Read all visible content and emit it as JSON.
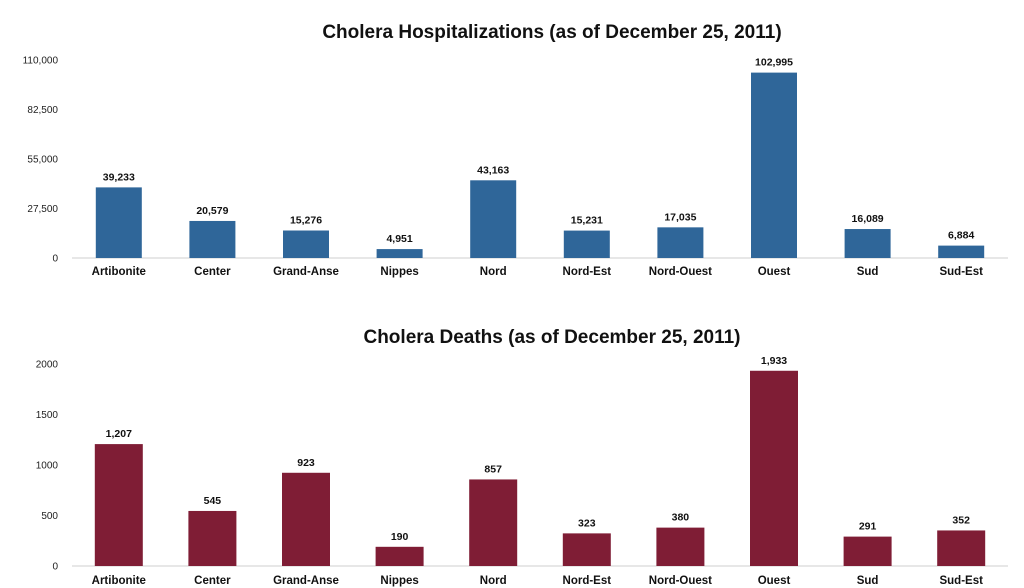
{
  "chart_data": [
    {
      "type": "bar",
      "title": "Cholera Hospitalizations (as of December 25, 2011)",
      "xlabel": "",
      "ylabel": "",
      "categories": [
        "Artibonite",
        "Center",
        "Grand-Anse",
        "Nippes",
        "Nord",
        "Nord-Est",
        "Nord-Ouest",
        "Ouest",
        "Sud",
        "Sud-Est"
      ],
      "values": [
        39233,
        20579,
        15276,
        4951,
        43163,
        15231,
        17035,
        102995,
        16089,
        6884
      ],
      "value_labels": [
        "39,233",
        "20,579",
        "15,276",
        "4,951",
        "43,163",
        "15,231",
        "17,035",
        "102,995",
        "16,089",
        "6,884"
      ],
      "yticks": [
        "0",
        "27,500",
        "55,000",
        "82,500",
        "110,000"
      ],
      "ylim": [
        0,
        110000
      ],
      "grid": false,
      "legend": "none",
      "color": "#2f6699"
    },
    {
      "type": "bar",
      "title": "Cholera Deaths (as of December 25, 2011)",
      "xlabel": "",
      "ylabel": "",
      "categories": [
        "Artibonite",
        "Center",
        "Grand-Anse",
        "Nippes",
        "Nord",
        "Nord-Est",
        "Nord-Ouest",
        "Ouest",
        "Sud",
        "Sud-Est"
      ],
      "values": [
        1207,
        545,
        923,
        190,
        857,
        323,
        380,
        1933,
        291,
        352
      ],
      "value_labels": [
        "1,207",
        "545",
        "923",
        "190",
        "857",
        "323",
        "380",
        "1,933",
        "291",
        "352"
      ],
      "yticks": [
        "0",
        "500",
        "1000",
        "1500",
        "2000"
      ],
      "ylim": [
        0,
        2000
      ],
      "grid": false,
      "legend": "none",
      "color": "#7f1d35"
    }
  ]
}
